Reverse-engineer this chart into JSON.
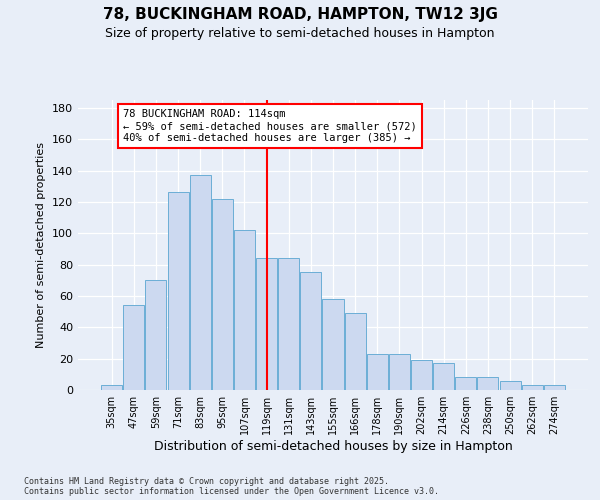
{
  "title1": "78, BUCKINGHAM ROAD, HAMPTON, TW12 3JG",
  "title2": "Size of property relative to semi-detached houses in Hampton",
  "xlabel": "Distribution of semi-detached houses by size in Hampton",
  "ylabel": "Number of semi-detached properties",
  "categories": [
    "35sqm",
    "47sqm",
    "59sqm",
    "71sqm",
    "83sqm",
    "95sqm",
    "107sqm",
    "119sqm",
    "131sqm",
    "143sqm",
    "155sqm",
    "166sqm",
    "178sqm",
    "190sqm",
    "202sqm",
    "214sqm",
    "226sqm",
    "238sqm",
    "250sqm",
    "262sqm",
    "274sqm"
  ],
  "values": [
    3,
    54,
    70,
    126,
    137,
    122,
    102,
    84,
    84,
    75,
    58,
    49,
    23,
    23,
    19,
    17,
    8,
    8,
    6,
    3,
    3
  ],
  "bar_color": "#ccd9f0",
  "bar_edge_color": "#6baed6",
  "vline_index": 7,
  "vline_color": "red",
  "annotation_line1": "78 BUCKINGHAM ROAD: 114sqm",
  "annotation_line2": "← 59% of semi-detached houses are smaller (572)",
  "annotation_line3": "40% of semi-detached houses are larger (385) →",
  "annotation_box_edgecolor": "red",
  "annotation_bg": "white",
  "footer1": "Contains HM Land Registry data © Crown copyright and database right 2025.",
  "footer2": "Contains public sector information licensed under the Open Government Licence v3.0.",
  "ylim": [
    0,
    185
  ],
  "yticks": [
    0,
    20,
    40,
    60,
    80,
    100,
    120,
    140,
    160,
    180
  ],
  "bg_color": "#e8eef8",
  "grid_color": "#ffffff",
  "title1_fontsize": 11,
  "title2_fontsize": 9,
  "xlabel_fontsize": 9,
  "ylabel_fontsize": 8,
  "xtick_fontsize": 7,
  "ytick_fontsize": 8,
  "footer_fontsize": 6,
  "ann_fontsize": 7.5
}
